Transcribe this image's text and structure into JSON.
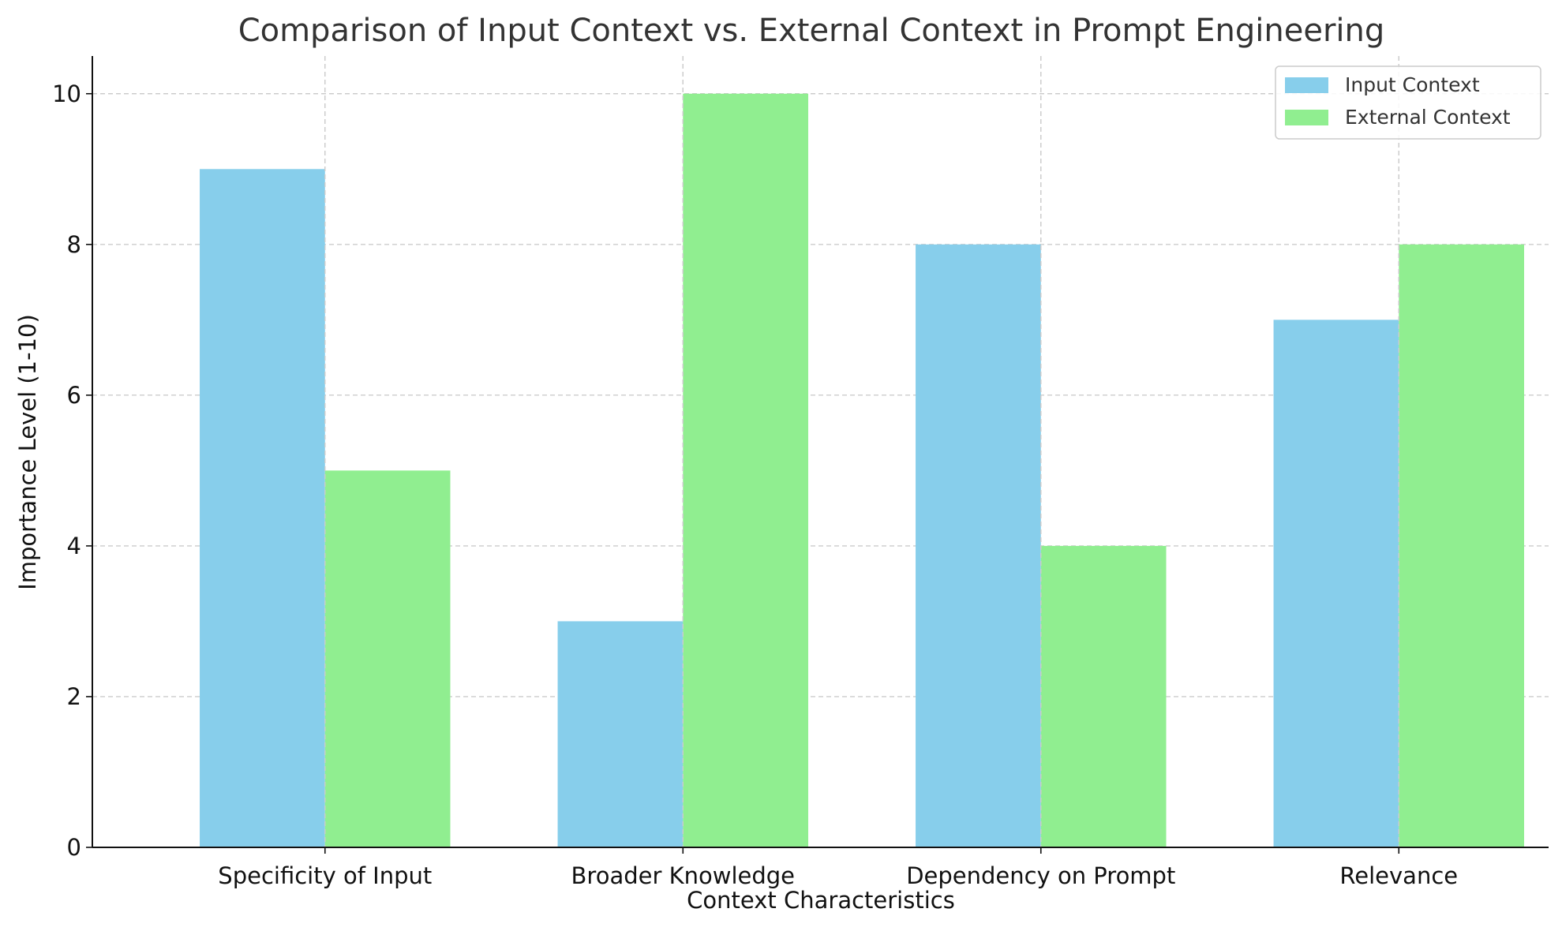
{
  "chart_data": {
    "type": "bar",
    "title": "Comparison of Input Context vs. External Context in Prompt Engineering",
    "xlabel": "Context Characteristics",
    "ylabel": "Importance Level (1-10)",
    "categories": [
      "Specificity of Input",
      "Broader Knowledge",
      "Dependency on Prompt",
      "Relevance"
    ],
    "series": [
      {
        "name": "Input Context",
        "color": "#87CEEB",
        "values": [
          9,
          3,
          8,
          7
        ]
      },
      {
        "name": "External Context",
        "color": "#90EE90",
        "values": [
          5,
          10,
          4,
          8
        ]
      }
    ],
    "ylim": [
      0,
      10.5
    ],
    "yticks": [
      0,
      2,
      4,
      6,
      8,
      10
    ],
    "grid": true,
    "legend_position": "top-right"
  }
}
